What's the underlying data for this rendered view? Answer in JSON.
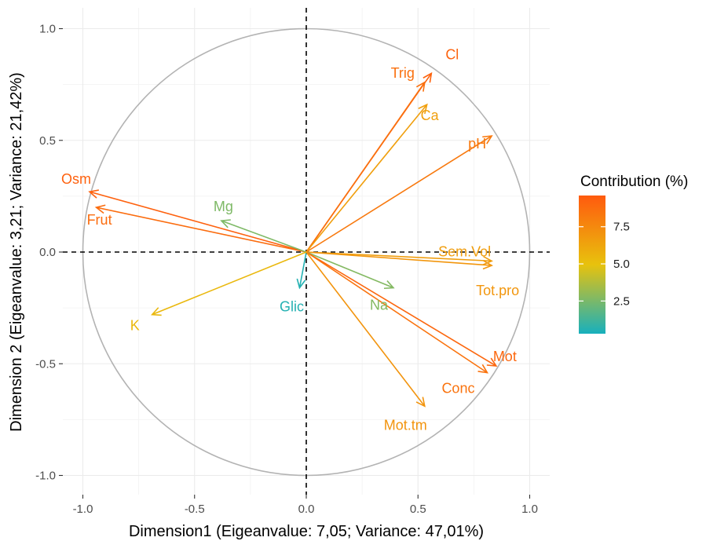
{
  "chart_data": {
    "type": "scatter",
    "title": "",
    "xlabel": "Dimension1 (Eigeanvalue: 7,05; Variance: 47,01%)",
    "ylabel": "Dimension 2 (Eigeanvalue: 3,21; Variance: 21,42%)",
    "xlim": [
      -1.0,
      1.0
    ],
    "ylim": [
      -1.0,
      1.0
    ],
    "x_ticks": [
      "-1.0",
      "-0.5",
      "0.0",
      "0.5",
      "1.0"
    ],
    "y_ticks": [
      "-1.0",
      "-0.5",
      "0.0",
      "0.5",
      "1.0"
    ],
    "grid": true,
    "legend": {
      "title": "Contribution (%)",
      "placement": "right",
      "ticks": [
        "7.5",
        "5.0",
        "2.5"
      ],
      "tick_values": [
        7.5,
        5.0,
        2.5
      ],
      "range": [
        0.3,
        9.6
      ],
      "gradient": [
        "#17b0bd",
        "#e8c20d",
        "#ff5a0e"
      ]
    },
    "variables": [
      {
        "name": "Cl",
        "x": 0.56,
        "y": 0.8,
        "contrib": 9.2
      },
      {
        "name": "Trig",
        "x": 0.53,
        "y": 0.76,
        "contrib": 8.6
      },
      {
        "name": "Ca",
        "x": 0.54,
        "y": 0.66,
        "contrib": 6.5
      },
      {
        "name": "pH",
        "x": 0.83,
        "y": 0.52,
        "contrib": 8.2
      },
      {
        "name": "Osm",
        "x": -0.97,
        "y": 0.27,
        "contrib": 9.3
      },
      {
        "name": "Frut",
        "x": -0.94,
        "y": 0.2,
        "contrib": 8.8
      },
      {
        "name": "Mg",
        "x": -0.38,
        "y": 0.14,
        "contrib": 2.6
      },
      {
        "name": "Sem.Vol",
        "x": 0.83,
        "y": -0.04,
        "contrib": 6.6
      },
      {
        "name": "Tot.pro",
        "x": 0.83,
        "y": -0.06,
        "contrib": 6.9
      },
      {
        "name": "Glic",
        "x": -0.03,
        "y": -0.16,
        "contrib": 0.6
      },
      {
        "name": "Na",
        "x": 0.39,
        "y": -0.16,
        "contrib": 2.7
      },
      {
        "name": "K",
        "x": -0.69,
        "y": -0.28,
        "contrib": 5.4
      },
      {
        "name": "Mot",
        "x": 0.85,
        "y": -0.51,
        "contrib": 9.0
      },
      {
        "name": "Conc",
        "x": 0.81,
        "y": -0.54,
        "contrib": 8.5
      },
      {
        "name": "Mot.tm",
        "x": 0.53,
        "y": -0.69,
        "contrib": 7.0
      }
    ]
  }
}
